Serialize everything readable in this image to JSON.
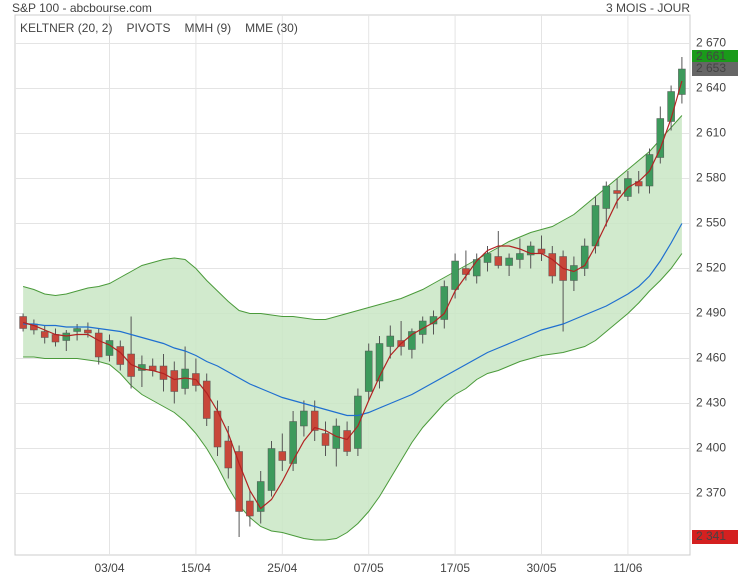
{
  "chart_data": {
    "type": "candlestick",
    "title": "S&P 100 - abcbourse.com",
    "period": "3 MOIS - JOUR",
    "legend": [
      {
        "name": "KELTNER (20, 2)",
        "color": "#4a9a3a"
      },
      {
        "name": "PIVOTS",
        "color": "#555555"
      },
      {
        "name": "MMH (9)",
        "color": "#b22222"
      },
      {
        "name": "MME (30)",
        "color": "#1f6fd0"
      }
    ],
    "xlim": [
      -0.75,
      61.75
    ],
    "xticks": [
      {
        "value": 8,
        "label": "03/04"
      },
      {
        "value": 16,
        "label": "15/04"
      },
      {
        "value": 24,
        "label": "25/04"
      },
      {
        "value": 32,
        "label": "07/05"
      },
      {
        "value": 40,
        "label": "17/05"
      },
      {
        "value": 48,
        "label": "30/05"
      },
      {
        "value": 56,
        "label": "11/06"
      }
    ],
    "ylim": [
      2329,
      2689
    ],
    "yticks": [
      {
        "value": 2370,
        "label": "2 370"
      },
      {
        "value": 2400,
        "label": "2 400"
      },
      {
        "value": 2430,
        "label": "2 430"
      },
      {
        "value": 2460,
        "label": "2 460"
      },
      {
        "value": 2490,
        "label": "2 490"
      },
      {
        "value": 2520,
        "label": "2 520"
      },
      {
        "value": 2550,
        "label": "2 550"
      },
      {
        "value": 2580,
        "label": "2 580"
      },
      {
        "value": 2610,
        "label": "2 610"
      },
      {
        "value": 2640,
        "label": "2 640"
      },
      {
        "value": 2670,
        "label": "2 670"
      }
    ],
    "grid": true,
    "up_color": "#3d9a5c",
    "down_color": "#c8473a",
    "candles": {
      "open": [
        2488,
        2483,
        2478,
        2476,
        2472,
        2478,
        2479,
        2477,
        2462,
        2468,
        2463,
        2452,
        2455,
        2455,
        2452,
        2440,
        2450,
        2445,
        2425,
        2405,
        2398,
        2365,
        2358,
        2372,
        2398,
        2390,
        2415,
        2425,
        2410,
        2400,
        2412,
        2400,
        2438,
        2445,
        2468,
        2472,
        2466,
        2476,
        2483,
        2486,
        2506,
        2520,
        2515,
        2524,
        2528,
        2522,
        2526,
        2529,
        2533,
        2530,
        2528,
        2512,
        2520,
        2535,
        2560,
        2572,
        2568,
        2578,
        2575,
        2594,
        2618,
        2636
      ],
      "high": [
        2490,
        2486,
        2482,
        2480,
        2479,
        2483,
        2484,
        2480,
        2476,
        2472,
        2488,
        2462,
        2460,
        2463,
        2458,
        2468,
        2460,
        2450,
        2432,
        2415,
        2402,
        2372,
        2385,
        2405,
        2410,
        2425,
        2432,
        2432,
        2418,
        2420,
        2418,
        2440,
        2470,
        2475,
        2482,
        2485,
        2480,
        2488,
        2492,
        2512,
        2530,
        2532,
        2530,
        2535,
        2545,
        2530,
        2540,
        2538,
        2542,
        2535,
        2532,
        2528,
        2540,
        2568,
        2578,
        2580,
        2585,
        2585,
        2600,
        2628,
        2642,
        2661
      ],
      "low": [
        2478,
        2476,
        2470,
        2468,
        2465,
        2472,
        2474,
        2456,
        2458,
        2452,
        2440,
        2441,
        2448,
        2438,
        2430,
        2436,
        2438,
        2415,
        2395,
        2380,
        2341,
        2348,
        2350,
        2368,
        2385,
        2385,
        2408,
        2405,
        2395,
        2388,
        2395,
        2395,
        2432,
        2440,
        2460,
        2462,
        2460,
        2470,
        2476,
        2480,
        2500,
        2512,
        2510,
        2518,
        2520,
        2515,
        2520,
        2520,
        2525,
        2510,
        2478,
        2505,
        2515,
        2530,
        2548,
        2560,
        2565,
        2570,
        2570,
        2590,
        2612,
        2630
      ],
      "close": [
        2480,
        2479,
        2474,
        2471,
        2477,
        2480,
        2477,
        2461,
        2472,
        2456,
        2448,
        2456,
        2452,
        2446,
        2438,
        2453,
        2442,
        2420,
        2401,
        2387,
        2358,
        2355,
        2378,
        2400,
        2392,
        2418,
        2425,
        2412,
        2402,
        2415,
        2398,
        2435,
        2465,
        2470,
        2475,
        2468,
        2478,
        2485,
        2488,
        2508,
        2525,
        2516,
        2526,
        2530,
        2522,
        2527,
        2530,
        2535,
        2530,
        2515,
        2512,
        2522,
        2535,
        2562,
        2575,
        2570,
        2580,
        2575,
        2596,
        2620,
        2638,
        2653
      ]
    },
    "bands": {
      "color": "#4a9a3a",
      "fill": "#c9e6c4",
      "upper": [
        2508,
        2506,
        2503,
        2502,
        2503,
        2505,
        2507,
        2508,
        2510,
        2514,
        2518,
        2522,
        2524,
        2526,
        2527,
        2526,
        2520,
        2512,
        2505,
        2498,
        2492,
        2490,
        2490,
        2489,
        2488,
        2488,
        2487,
        2486,
        2486,
        2488,
        2490,
        2492,
        2494,
        2496,
        2498,
        2500,
        2503,
        2506,
        2510,
        2514,
        2518,
        2522,
        2526,
        2530,
        2534,
        2538,
        2541,
        2544,
        2546,
        2548,
        2552,
        2556,
        2562,
        2568,
        2574,
        2580,
        2586,
        2592,
        2598,
        2606,
        2614,
        2622
      ],
      "lower": [
        2461,
        2461,
        2460,
        2460,
        2460,
        2460,
        2459,
        2458,
        2456,
        2450,
        2442,
        2436,
        2432,
        2428,
        2424,
        2418,
        2410,
        2400,
        2388,
        2374,
        2362,
        2354,
        2348,
        2345,
        2344,
        2342,
        2340,
        2339,
        2339,
        2340,
        2344,
        2350,
        2358,
        2368,
        2380,
        2392,
        2404,
        2414,
        2422,
        2430,
        2436,
        2440,
        2446,
        2450,
        2452,
        2455,
        2458,
        2460,
        2462,
        2463,
        2464,
        2466,
        2468,
        2472,
        2478,
        2484,
        2490,
        2497,
        2505,
        2512,
        2520,
        2530
      ]
    },
    "series": [
      {
        "color": "#1f6fd0",
        "values": [
          2483,
          2483,
          2482,
          2482,
          2481,
          2481,
          2481,
          2480,
          2479,
          2478,
          2476,
          2474,
          2472,
          2470,
          2467,
          2465,
          2462,
          2458,
          2455,
          2451,
          2447,
          2443,
          2440,
          2437,
          2434,
          2432,
          2430,
          2428,
          2426,
          2424,
          2422,
          2422,
          2424,
          2427,
          2430,
          2433,
          2436,
          2440,
          2444,
          2448,
          2452,
          2456,
          2460,
          2464,
          2467,
          2470,
          2473,
          2476,
          2479,
          2481,
          2483,
          2486,
          2489,
          2492,
          2495,
          2499,
          2503,
          2508,
          2515,
          2525,
          2537,
          2550
        ]
      },
      {
        "color": "#b22222",
        "values": [
          2484,
          2482,
          2479,
          2476,
          2475,
          2476,
          2476,
          2472,
          2469,
          2464,
          2456,
          2453,
          2452,
          2450,
          2446,
          2447,
          2446,
          2437,
          2425,
          2410,
          2390,
          2372,
          2360,
          2366,
          2378,
          2392,
          2405,
          2414,
          2412,
          2408,
          2406,
          2415,
          2432,
          2448,
          2462,
          2470,
          2476,
          2480,
          2484,
          2490,
          2505,
          2515,
          2525,
          2532,
          2535,
          2535,
          2533,
          2530,
          2530,
          2526,
          2520,
          2518,
          2522,
          2535,
          2550,
          2565,
          2574,
          2578,
          2585,
          2600,
          2620,
          2645
        ]
      }
    ],
    "price_markers": [
      {
        "value": 2661,
        "label": "2 661",
        "color": "#1a9a1a"
      },
      {
        "value": 2653,
        "label": "2 653",
        "color": "#666666"
      },
      {
        "value": 2341,
        "label": "2 341",
        "color": "#d42020"
      }
    ]
  }
}
